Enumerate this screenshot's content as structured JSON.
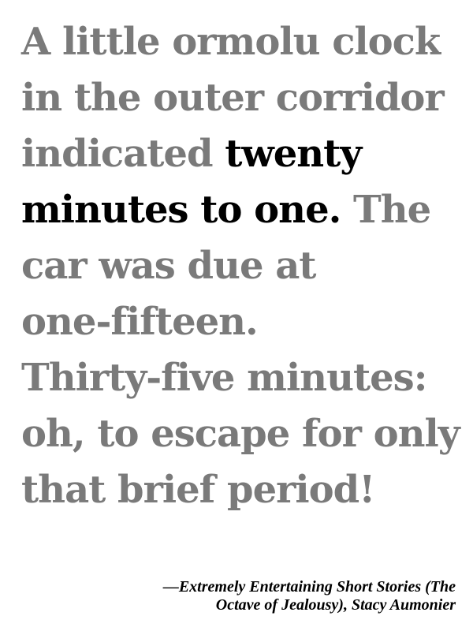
{
  "quote": {
    "lines": [
      "A little ormolu clock",
      "in the outer corridor",
      "indicated ",
      "twenty",
      "minutes to one.",
      " The",
      "car was due at",
      "one-fifteen.",
      "Thirty-five minutes:",
      "oh, to escape for only",
      "that brief period!"
    ]
  },
  "attribution": {
    "line1": "—Extremely Entertaining Short Stories (The",
    "line2": "Octave of Jealousy), Stacy Aumonier"
  },
  "colors": {
    "text_gray": "#7a7a7a",
    "highlight": "#000000",
    "background": "#ffffff"
  }
}
